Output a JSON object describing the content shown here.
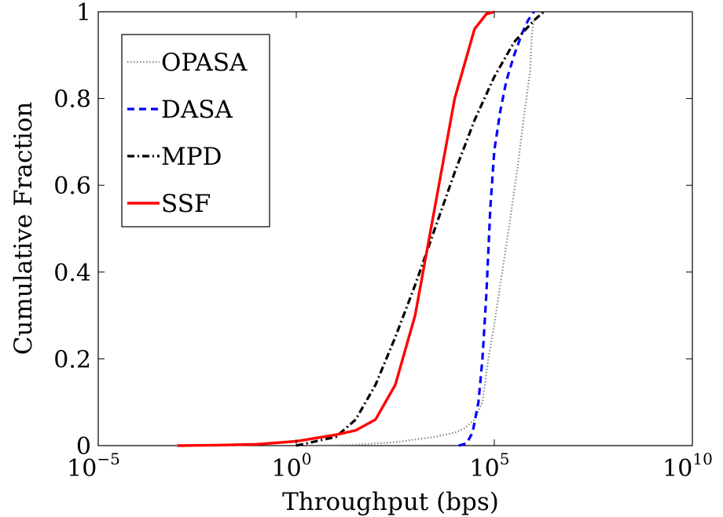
{
  "chart_data": {
    "type": "line",
    "xlabel": "Throughput (bps)",
    "ylabel": "Cumulative Fraction",
    "xscale": "log",
    "xlim": [
      1e-05,
      10000000000
    ],
    "ylim": [
      0,
      1
    ],
    "x_ticks": [
      {
        "value": 1e-05,
        "base": "10",
        "exp": "−5"
      },
      {
        "value": 1,
        "base": "10",
        "exp": "0"
      },
      {
        "value": 100000,
        "base": "10",
        "exp": "5"
      },
      {
        "value": 10000000000,
        "base": "10",
        "exp": "10"
      }
    ],
    "y_ticks": [
      {
        "value": 0,
        "label": "0"
      },
      {
        "value": 0.2,
        "label": "0.2"
      },
      {
        "value": 0.4,
        "label": "0.4"
      },
      {
        "value": 0.6,
        "label": "0.6"
      },
      {
        "value": 0.8,
        "label": "0.8"
      },
      {
        "value": 1,
        "label": "1"
      }
    ],
    "grid": false,
    "legend_position": "top-left",
    "series": [
      {
        "name": "OPASA",
        "color": "#888888",
        "style": "dotted",
        "points": [
          [
            2,
            0
          ],
          [
            31.6,
            0.002
          ],
          [
            316,
            0.008
          ],
          [
            3160,
            0.02
          ],
          [
            10000,
            0.03
          ],
          [
            17800,
            0.04
          ],
          [
            31600,
            0.06
          ],
          [
            50100,
            0.1
          ],
          [
            70800,
            0.2
          ],
          [
            100000,
            0.28
          ],
          [
            158000,
            0.4
          ],
          [
            251000,
            0.52
          ],
          [
            398000,
            0.65
          ],
          [
            562000,
            0.76
          ],
          [
            794000,
            0.86
          ],
          [
            891000,
            0.95
          ],
          [
            1000000,
            0.98
          ]
        ]
      },
      {
        "name": "DASA",
        "color": "#0000ff",
        "style": "dashed",
        "points": [
          [
            12600,
            0
          ],
          [
            20000,
            0.005
          ],
          [
            28200,
            0.03
          ],
          [
            39800,
            0.1
          ],
          [
            50100,
            0.2
          ],
          [
            63100,
            0.35
          ],
          [
            79400,
            0.55
          ],
          [
            100000,
            0.68
          ],
          [
            141000,
            0.77
          ],
          [
            200000,
            0.84
          ],
          [
            316000,
            0.9
          ],
          [
            501000,
            0.95
          ],
          [
            708000,
            0.98
          ],
          [
            1000000,
            1
          ]
        ]
      },
      {
        "name": "MPD",
        "color": "#000000",
        "style": "dash-dot",
        "points": [
          [
            1,
            0
          ],
          [
            10,
            0.02
          ],
          [
            31.6,
            0.06
          ],
          [
            100,
            0.14
          ],
          [
            316,
            0.25
          ],
          [
            1000,
            0.37
          ],
          [
            3160,
            0.5
          ],
          [
            10000,
            0.63
          ],
          [
            31600,
            0.75
          ],
          [
            100000,
            0.85
          ],
          [
            316000,
            0.93
          ],
          [
            1000000,
            0.98
          ],
          [
            1780000,
            1
          ]
        ]
      },
      {
        "name": "SSF",
        "color": "#ff0000",
        "style": "solid",
        "points": [
          [
            0.001,
            0
          ],
          [
            0.01,
            0.001
          ],
          [
            0.1,
            0.003
          ],
          [
            1,
            0.01
          ],
          [
            10,
            0.025
          ],
          [
            31.6,
            0.035
          ],
          [
            100,
            0.06
          ],
          [
            316,
            0.14
          ],
          [
            1000,
            0.3
          ],
          [
            3160,
            0.55
          ],
          [
            10000,
            0.8
          ],
          [
            31600,
            0.96
          ],
          [
            63100,
            0.995
          ],
          [
            100000,
            1
          ]
        ]
      }
    ]
  }
}
